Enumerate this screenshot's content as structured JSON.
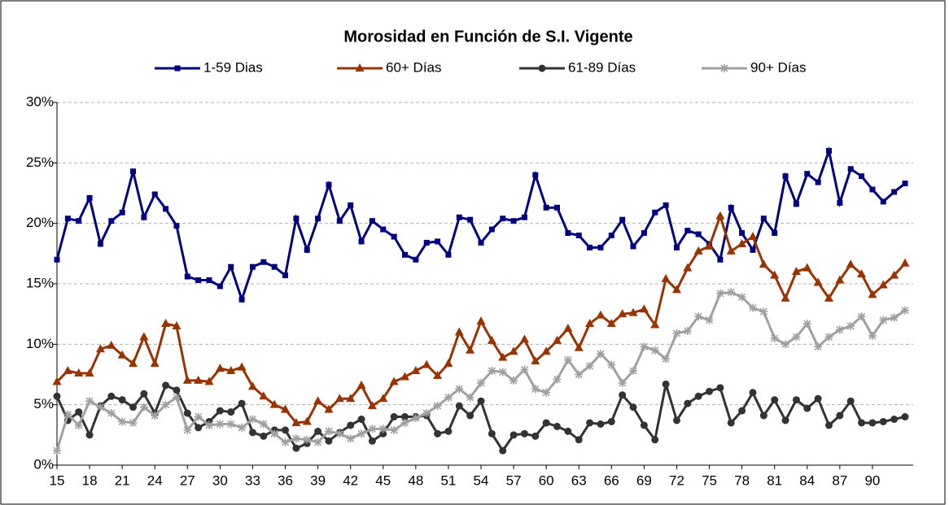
{
  "chart_data": {
    "type": "line",
    "title": "Morosidad en Función de S.I. Vigente",
    "x": [
      15,
      16,
      17,
      18,
      19,
      20,
      21,
      22,
      23,
      24,
      25,
      26,
      27,
      28,
      29,
      30,
      31,
      32,
      33,
      34,
      35,
      36,
      37,
      38,
      39,
      40,
      41,
      42,
      43,
      44,
      45,
      46,
      47,
      48,
      49,
      50,
      51,
      52,
      53,
      54,
      55,
      56,
      57,
      58,
      59,
      60,
      61,
      62,
      63,
      64,
      65,
      66,
      67,
      68,
      69,
      70,
      71,
      72,
      73,
      74,
      75,
      76,
      77,
      78,
      79,
      80,
      81,
      82,
      83,
      84,
      85,
      86,
      87,
      88,
      89,
      90,
      91,
      92,
      93
    ],
    "series": [
      {
        "name": "1-59 Dias",
        "color": "#000080",
        "marker": "square",
        "values": [
          17.0,
          20.4,
          20.2,
          22.1,
          18.3,
          20.2,
          20.9,
          24.3,
          20.5,
          22.4,
          21.2,
          19.8,
          15.6,
          15.3,
          15.3,
          14.8,
          16.4,
          13.7,
          16.4,
          16.8,
          16.4,
          15.7,
          20.4,
          17.8,
          20.4,
          23.2,
          20.2,
          21.5,
          18.5,
          20.2,
          19.5,
          18.9,
          17.4,
          17.0,
          18.4,
          18.5,
          17.4,
          20.5,
          20.3,
          18.4,
          19.5,
          20.4,
          20.2,
          20.5,
          24.0,
          21.3,
          21.3,
          19.2,
          19.0,
          18.0,
          18.0,
          19.0,
          20.3,
          18.1,
          19.2,
          20.9,
          21.5,
          18.0,
          19.4,
          19.1,
          18.3,
          17.0,
          21.3,
          19.2,
          17.8,
          20.4,
          19.2,
          23.9,
          21.6,
          24.1,
          23.4,
          26.0,
          21.7,
          24.5,
          23.9,
          22.8,
          21.8,
          22.6,
          23.3
        ]
      },
      {
        "name": "60+ Días",
        "color": "#993300",
        "marker": "triangle",
        "values": [
          6.9,
          7.8,
          7.6,
          7.6,
          9.6,
          9.9,
          9.1,
          8.4,
          10.6,
          8.4,
          11.7,
          11.5,
          7.0,
          7.0,
          6.9,
          8.0,
          7.8,
          8.1,
          6.5,
          5.7,
          5.0,
          4.6,
          3.5,
          3.6,
          5.3,
          4.6,
          5.5,
          5.5,
          6.6,
          4.9,
          5.5,
          6.9,
          7.3,
          7.8,
          8.3,
          7.4,
          8.4,
          11.0,
          9.5,
          11.9,
          10.3,
          8.9,
          9.4,
          10.4,
          8.6,
          9.4,
          10.3,
          11.3,
          9.7,
          11.7,
          12.4,
          11.7,
          12.5,
          12.6,
          12.9,
          11.6,
          15.4,
          14.5,
          16.3,
          17.7,
          18.1,
          20.6,
          17.7,
          18.3,
          18.9,
          16.6,
          15.7,
          13.8,
          16.0,
          16.3,
          15.1,
          13.8,
          15.3,
          16.6,
          15.8,
          14.1,
          14.9,
          15.7,
          16.7
        ]
      },
      {
        "name": "61-89 Días",
        "color": "#333333",
        "marker": "circle",
        "values": [
          5.7,
          3.7,
          4.4,
          2.5,
          4.9,
          5.7,
          5.4,
          4.8,
          5.9,
          4.3,
          6.6,
          6.2,
          4.3,
          3.1,
          3.6,
          4.5,
          4.4,
          5.1,
          2.7,
          2.4,
          2.9,
          2.9,
          1.4,
          1.8,
          2.8,
          2.0,
          2.7,
          3.3,
          3.8,
          2.0,
          2.6,
          4.0,
          4.0,
          4.0,
          4.1,
          2.6,
          2.8,
          4.9,
          4.1,
          5.3,
          2.6,
          1.2,
          2.5,
          2.6,
          2.4,
          3.5,
          3.2,
          2.8,
          2.1,
          3.5,
          3.4,
          3.6,
          5.8,
          4.8,
          3.3,
          2.1,
          6.7,
          3.7,
          5.1,
          5.7,
          6.1,
          6.4,
          3.5,
          4.5,
          6.0,
          4.1,
          5.4,
          3.7,
          5.4,
          4.7,
          5.5,
          3.3,
          4.1,
          5.3,
          3.5,
          3.5,
          3.6,
          3.8,
          4.0
        ]
      },
      {
        "name": "90+ Días",
        "color": "#a0a0a0",
        "marker": "star",
        "values": [
          1.2,
          4.2,
          3.3,
          5.3,
          4.8,
          4.3,
          3.6,
          3.5,
          4.8,
          4.1,
          5.0,
          5.6,
          2.9,
          4.0,
          3.3,
          3.4,
          3.4,
          3.1,
          3.8,
          3.4,
          2.6,
          1.9,
          2.2,
          2.1,
          1.9,
          2.8,
          2.6,
          2.2,
          2.6,
          3.0,
          3.0,
          2.9,
          3.5,
          3.9,
          4.3,
          4.9,
          5.6,
          6.3,
          5.6,
          6.8,
          7.8,
          7.7,
          7.0,
          7.9,
          6.3,
          6.0,
          7.1,
          8.7,
          7.5,
          8.2,
          9.2,
          8.3,
          6.8,
          7.8,
          9.8,
          9.5,
          8.8,
          10.9,
          11.1,
          12.3,
          12.0,
          14.2,
          14.3,
          13.9,
          13.0,
          12.7,
          10.5,
          10.0,
          10.6,
          11.7,
          9.8,
          10.6,
          11.2,
          11.5,
          12.3,
          10.7,
          12.0,
          12.2,
          12.8
        ]
      }
    ],
    "xlim": [
      15,
      93
    ],
    "xticks": [
      15,
      18,
      21,
      24,
      27,
      30,
      33,
      36,
      39,
      42,
      45,
      48,
      51,
      54,
      57,
      60,
      63,
      66,
      69,
      72,
      75,
      78,
      81,
      84,
      87,
      90
    ],
    "ylim": [
      0,
      30
    ],
    "yticks": [
      {
        "value": 0,
        "label": "0%"
      },
      {
        "value": 5,
        "label": "5%"
      },
      {
        "value": 10,
        "label": "10%"
      },
      {
        "value": 15,
        "label": "15%"
      },
      {
        "value": 20,
        "label": "20%"
      },
      {
        "value": 25,
        "label": "25%"
      },
      {
        "value": 30,
        "label": "30%"
      }
    ],
    "grid": true,
    "legend": "top"
  }
}
